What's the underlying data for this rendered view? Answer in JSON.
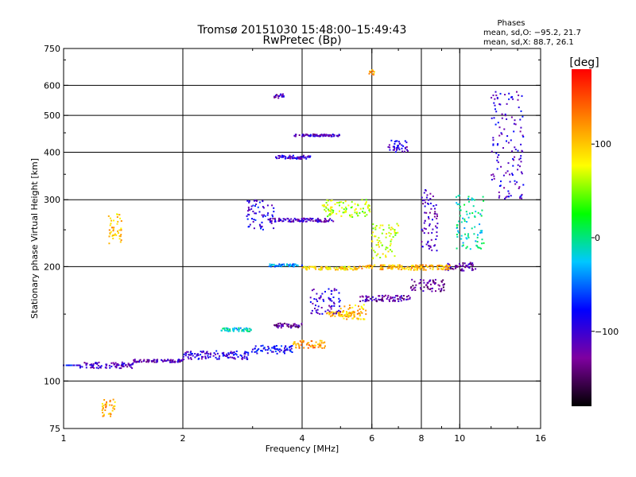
{
  "chart_data": {
    "type": "scatter",
    "title": "Tromsø 20151030 15:48:00–15:49:43",
    "subtitle": "RwPretec (Bp)",
    "annotation": {
      "heading": "Phases",
      "line1": "mean, sd,O: −95.2, 21.7",
      "line2": "mean, sd,X:  88.7, 26.1"
    },
    "xlabel": "Frequency [MHz]",
    "ylabel": "Stationary phase Virtual Height [km]",
    "xscale": "log",
    "yscale": "log",
    "xlim": [
      1,
      16
    ],
    "ylim": [
      75,
      750
    ],
    "xticks": [
      1,
      2,
      4,
      6,
      8,
      10,
      16
    ],
    "xtick_labels": [
      "1",
      "2",
      "4",
      "6",
      "8",
      "10",
      "16"
    ],
    "xgrid": [
      2,
      4,
      6,
      8,
      10
    ],
    "yticks": [
      75,
      100,
      200,
      300,
      400,
      500,
      600,
      750
    ],
    "ytick_labels": [
      "75",
      "100",
      "200",
      "300",
      "400",
      "500",
      "600",
      "750"
    ],
    "ygrid": [
      100,
      200,
      300,
      400,
      500,
      600
    ],
    "grid": true,
    "colorbar": {
      "label": "[deg]",
      "range": [
        -180,
        180
      ],
      "ticks": [
        100,
        0,
        -100
      ],
      "tick_labels": [
        "100",
        "0",
        "−100"
      ],
      "colormap": "rainbow",
      "colors": [
        "#000000",
        "#7f00a0",
        "#0000ff",
        "#00c8ff",
        "#00ff00",
        "#ffff00",
        "#ff8000",
        "#ff0000"
      ]
    },
    "series": [
      {
        "x": [
          1.0,
          1.1
        ],
        "y": [
          110,
          110
        ],
        "phase": -80
      },
      {
        "x": [
          1.1,
          1.5
        ],
        "y": [
          108,
          112
        ],
        "phase": -110
      },
      {
        "x": [
          1.5,
          2.0
        ],
        "y": [
          112,
          114
        ],
        "phase": -115
      },
      {
        "x": [
          2.0,
          3.0
        ],
        "y": [
          114,
          120
        ],
        "phase": -95
      },
      {
        "x": [
          3.0,
          3.8
        ],
        "y": [
          118,
          124
        ],
        "phase": -80
      },
      {
        "x": [
          3.8,
          4.6
        ],
        "y": [
          122,
          128
        ],
        "phase": 120
      },
      {
        "x": [
          4.6,
          5.6
        ],
        "y": [
          148,
          152
        ],
        "phase": 110
      },
      {
        "x": [
          5.6,
          7.5
        ],
        "y": [
          162,
          168
        ],
        "phase": -120
      },
      {
        "x": [
          7.5,
          9.2
        ],
        "y": [
          172,
          185
        ],
        "phase": -130
      },
      {
        "x": [
          9.2,
          11.0
        ],
        "y": [
          195,
          205
        ],
        "phase": -120
      },
      {
        "x": [
          3.3,
          4.0
        ],
        "y": [
          200,
          203
        ],
        "phase": -40
      },
      {
        "x": [
          4.0,
          5.5
        ],
        "y": [
          196,
          200
        ],
        "phase": 90
      },
      {
        "x": [
          5.5,
          9.5
        ],
        "y": [
          196,
          202
        ],
        "phase": 110
      },
      {
        "x": [
          3.3,
          4.8
        ],
        "y": [
          262,
          268
        ],
        "phase": -110
      },
      {
        "x": [
          4.5,
          6.0
        ],
        "y": [
          270,
          300
        ],
        "phase": 60
      },
      {
        "x": [
          3.4,
          4.2
        ],
        "y": [
          384,
          392
        ],
        "phase": -100
      },
      {
        "x": [
          3.8,
          5.0
        ],
        "y": [
          440,
          446
        ],
        "phase": -110
      },
      {
        "x": [
          4.2,
          5.0
        ],
        "y": [
          150,
          175
        ],
        "phase": -100
      },
      {
        "x": [
          5.0,
          5.8
        ],
        "y": [
          145,
          160
        ],
        "phase": 100
      },
      {
        "x": [
          6.0,
          7.0
        ],
        "y": [
          210,
          260
        ],
        "phase": 70
      },
      {
        "x": [
          8.0,
          8.8
        ],
        "y": [
          220,
          320
        ],
        "phase": -110
      },
      {
        "x": [
          9.8,
          11.5
        ],
        "y": [
          220,
          310
        ],
        "phase": -10
      },
      {
        "x": [
          2.5,
          3.0
        ],
        "y": [
          135,
          138
        ],
        "phase": -20
      },
      {
        "x": [
          3.4,
          4.0
        ],
        "y": [
          138,
          142
        ],
        "phase": -130
      },
      {
        "x": [
          3.4,
          3.6
        ],
        "y": [
          555,
          570
        ],
        "phase": -110
      },
      {
        "x": [
          5.9,
          6.1
        ],
        "y": [
          640,
          660
        ],
        "phase": 120
      },
      {
        "x": [
          1.25,
          1.35
        ],
        "y": [
          80,
          90
        ],
        "phase": 110
      },
      {
        "x": [
          1.3,
          1.4
        ],
        "y": [
          230,
          275
        ],
        "phase": 100
      },
      {
        "x": [
          2.9,
          3.4
        ],
        "y": [
          250,
          300
        ],
        "phase": -90
      },
      {
        "x": [
          6.6,
          7.4
        ],
        "y": [
          400,
          430
        ],
        "phase": -100
      },
      {
        "x": [
          12.0,
          14.5
        ],
        "y": [
          300,
          580
        ],
        "phase": -100
      }
    ]
  }
}
